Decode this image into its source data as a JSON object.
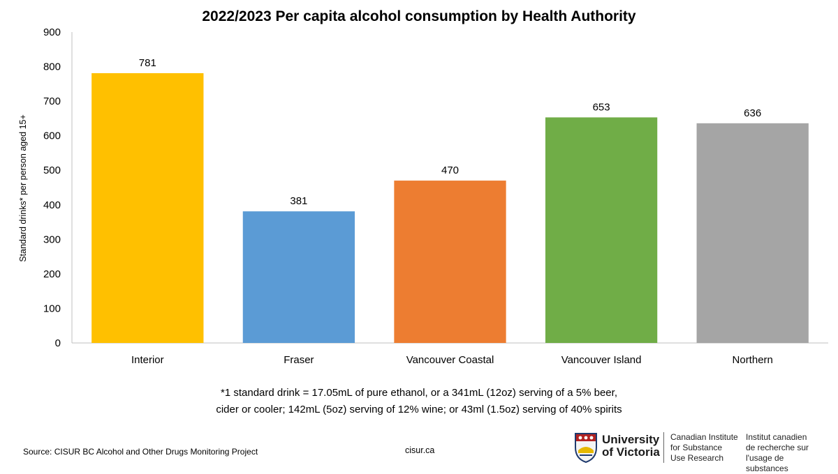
{
  "chart_data": {
    "type": "bar",
    "title": "2022/2023 Per capita alcohol consumption by Health Authority",
    "ylabel": "Standard drinks* per person aged 15+",
    "xlabel": "",
    "categories": [
      "Interior",
      "Fraser",
      "Vancouver Coastal",
      "Vancouver Island",
      "Northern"
    ],
    "values": [
      781,
      381,
      470,
      653,
      636
    ],
    "data_labels": [
      "781",
      "381",
      "470",
      "653",
      "636"
    ],
    "colors": [
      "#FFC000",
      "#5B9BD5",
      "#ED7D31",
      "#70AD47",
      "#A5A5A5"
    ],
    "ylim": [
      0,
      900
    ],
    "yticks": [
      0,
      100,
      200,
      300,
      400,
      500,
      600,
      700,
      800,
      900
    ],
    "grid": false,
    "legend": "none"
  },
  "footnote": {
    "line1": "*1 standard drink = 17.05mL of pure ethanol, or a 341mL (12oz) serving of a 5% beer,",
    "line2": "cider or cooler; 142mL (5oz) serving of 12% wine; or 43ml (1.5oz) serving of 40% spirits"
  },
  "source": "Source: CISUR BC Alcohol and Other Drugs Monitoring Project",
  "website": "cisur.ca",
  "logo": {
    "uvic_line1": "University",
    "uvic_line2": "of Victoria",
    "en_line1": "Canadian Institute",
    "en_line2": "for Substance",
    "en_line3": "Use Research",
    "fr_line1": "Institut canadien",
    "fr_line2": "de recherche sur",
    "fr_line3": "l'usage de substances"
  }
}
